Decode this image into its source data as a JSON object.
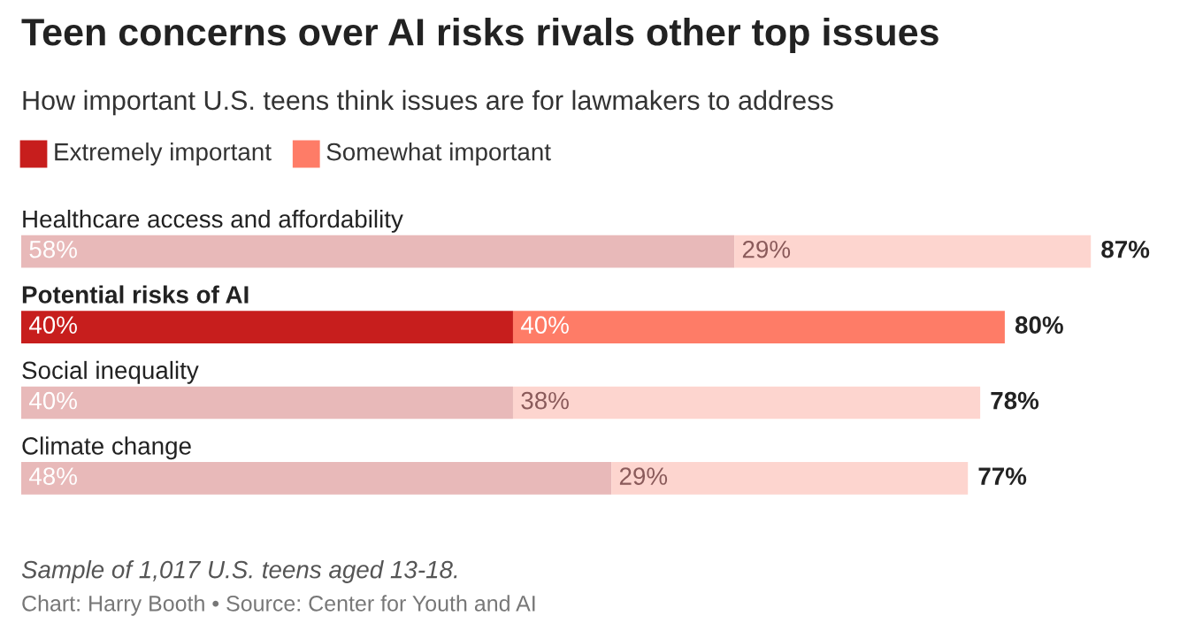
{
  "chart_data": {
    "type": "bar",
    "orientation": "horizontal",
    "stacked": true,
    "title": "Teen concerns over AI risks rivals other top issues",
    "subtitle": "How important U.S. teens think issues are for lawmakers to address",
    "categories": [
      "Healthcare access and affordability",
      "Potential risks of AI",
      "Social inequality",
      "Climate change"
    ],
    "series": [
      {
        "name": "Extremely important",
        "color": "#c71e1d",
        "colors": [
          "#e8b9b9",
          "#c71e1d",
          "#e8b9b9",
          "#e8b9b9"
        ],
        "values": [
          58,
          40,
          40,
          48
        ],
        "value_labels": [
          "58%",
          "40%",
          "40%",
          "48%"
        ]
      },
      {
        "name": "Somewhat important",
        "color": "#fe7c67",
        "colors": [
          "#fdd5cf",
          "#fe7c67",
          "#fdd5cf",
          "#fdd5cf"
        ],
        "values": [
          29,
          40,
          38,
          29
        ],
        "value_labels": [
          "29%",
          "40%",
          "38%",
          "29%"
        ]
      }
    ],
    "totals": [
      "87%",
      "80%",
      "78%",
      "77%"
    ],
    "legend": "top left",
    "annotations": [
      "Sample of 1,017 U.S. teens aged 13-18.",
      "Chart: Harry Booth • Source: Center for Youth and AI"
    ]
  }
}
